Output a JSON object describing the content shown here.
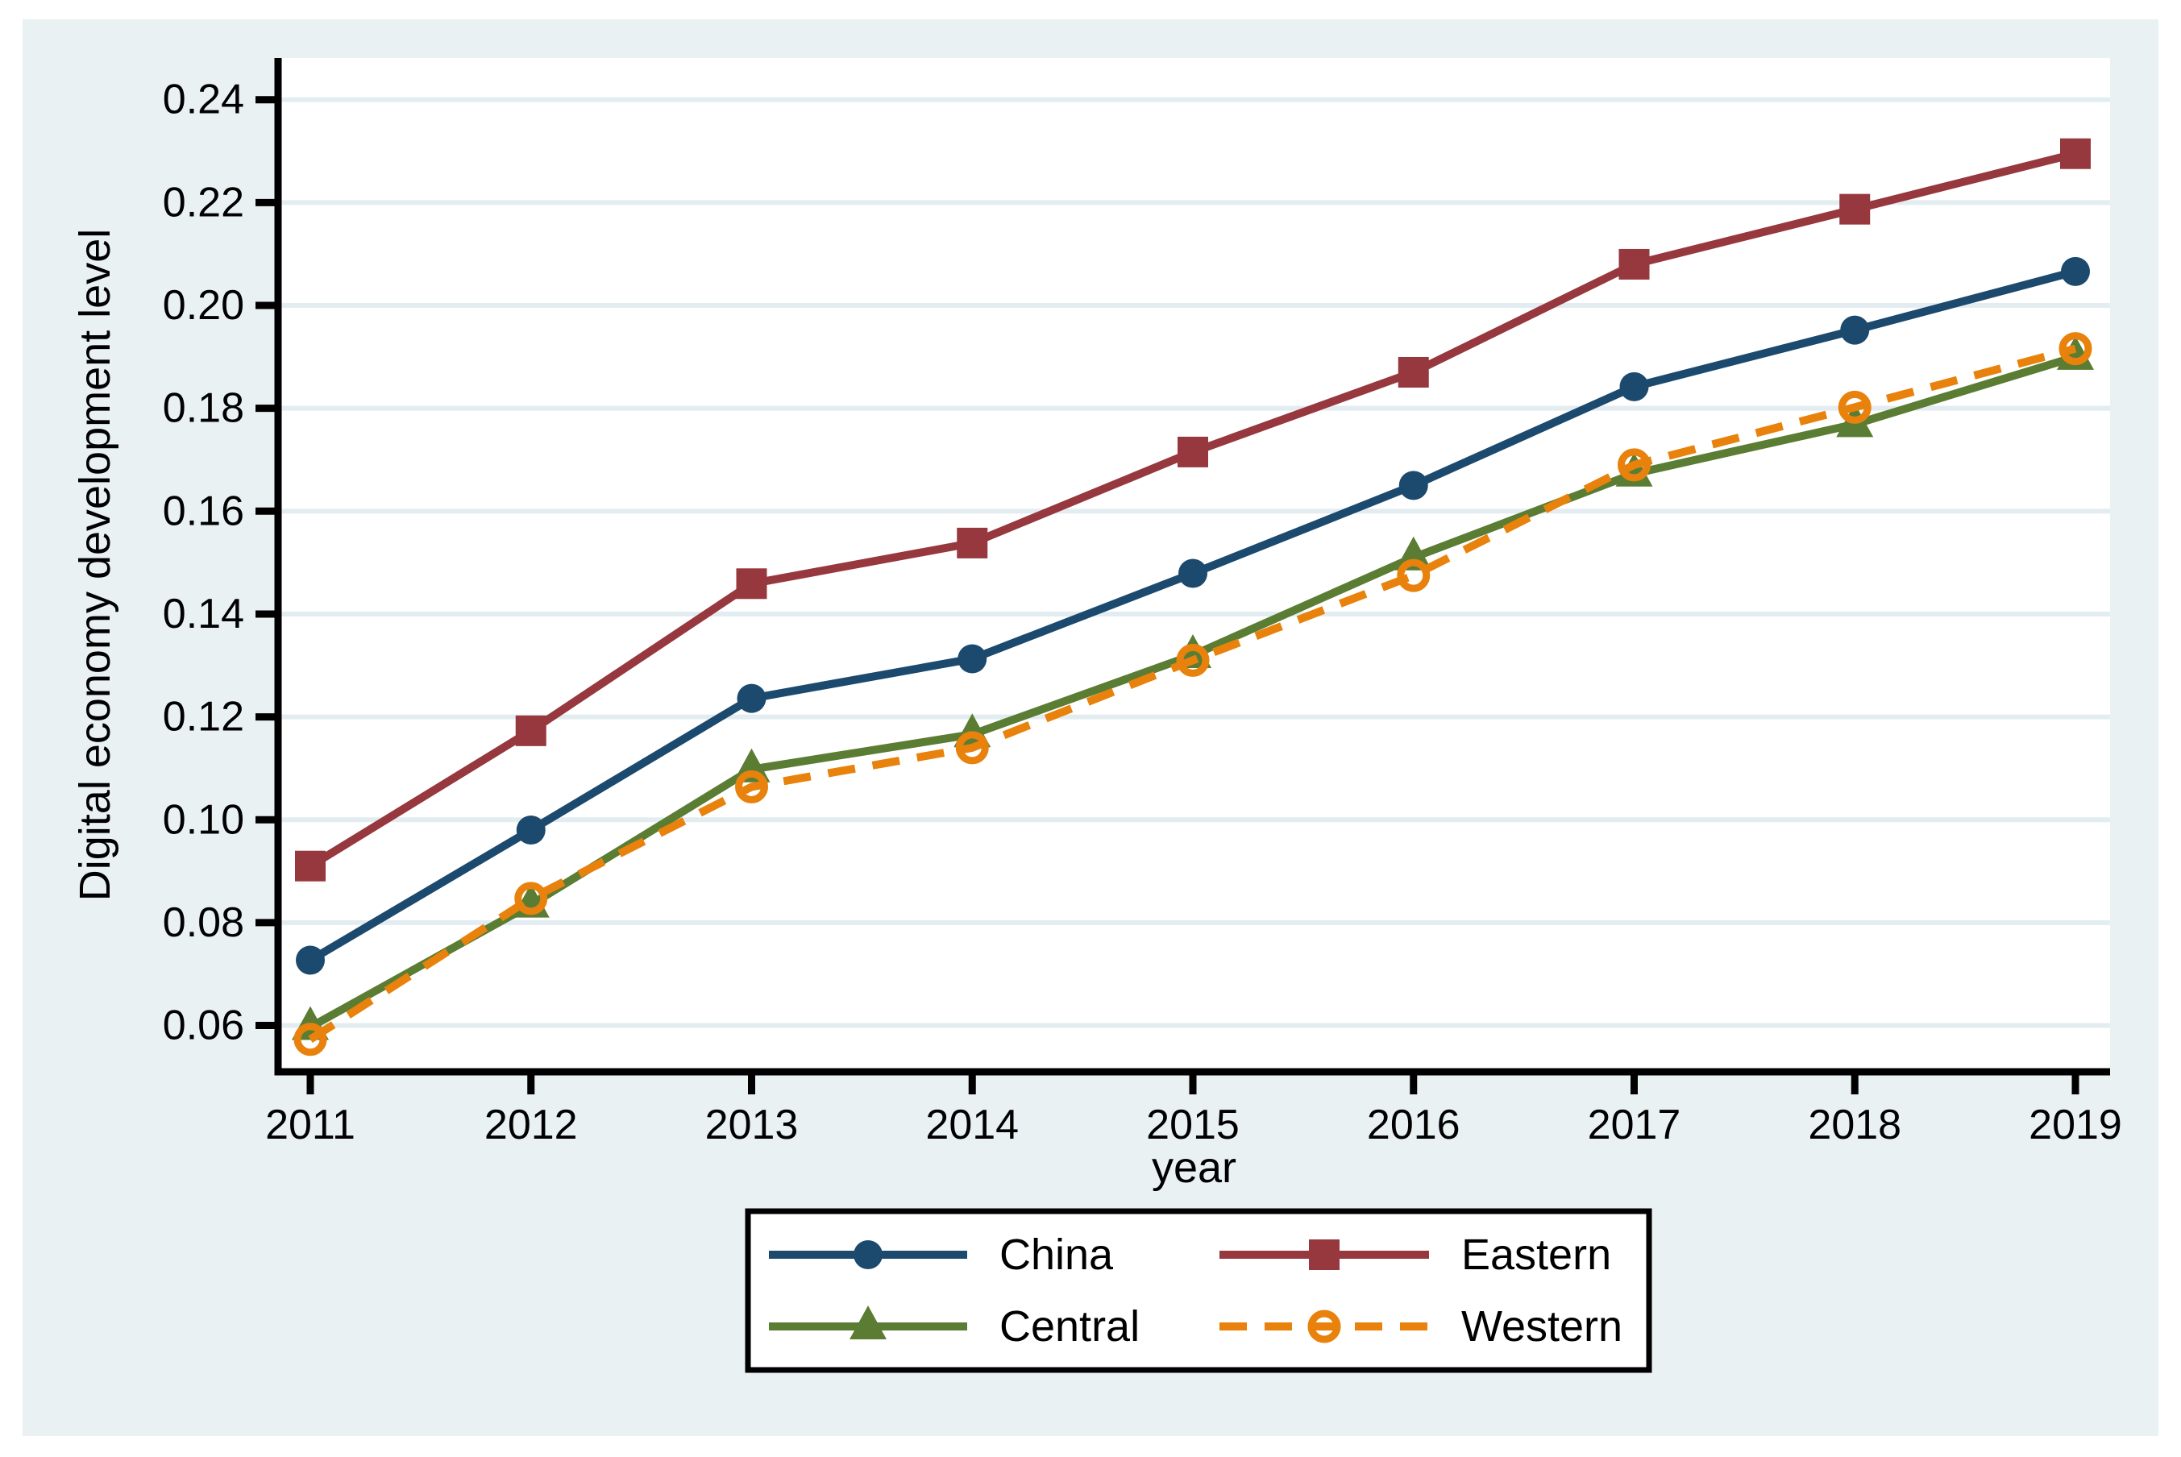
{
  "figure": {
    "page_background": "#ffffff",
    "canvas_background": "#e9f1f3",
    "plot_background": "#ffffff",
    "grid_color": "#e3edf1",
    "axis_color": "#000000",
    "text_color": "#000000"
  },
  "chart_data": {
    "type": "line",
    "title": "",
    "xlabel": "year",
    "ylabel": "Digital economy development level",
    "x": [
      2011,
      2012,
      2013,
      2014,
      2015,
      2016,
      2017,
      2018,
      2019
    ],
    "xtick_labels": [
      "2011",
      "2012",
      "2013",
      "2014",
      "2015",
      "2016",
      "2017",
      "2018",
      "2019"
    ],
    "yticks": [
      {
        "value": 0.06,
        "label": "0.06"
      },
      {
        "value": 0.08,
        "label": "0.08"
      },
      {
        "value": 0.1,
        "label": "0.10"
      },
      {
        "value": 0.12,
        "label": "0.12"
      },
      {
        "value": 0.14,
        "label": "0.14"
      },
      {
        "value": 0.16,
        "label": "0.16"
      },
      {
        "value": 0.18,
        "label": "0.18"
      },
      {
        "value": 0.2,
        "label": "0.20"
      },
      {
        "value": 0.22,
        "label": "0.22"
      },
      {
        "value": 0.24,
        "label": "0.24"
      }
    ],
    "ylim": [
      0.051,
      0.2481
    ],
    "grid": true,
    "legend_position": "bottom-center",
    "series": [
      {
        "name": "China",
        "color": "#1c4a6e",
        "marker": "circle",
        "line_style": "solid",
        "values": [
          0.0727,
          0.098,
          0.1236,
          0.1313,
          0.1479,
          0.165,
          0.1842,
          0.1952,
          0.2066
        ]
      },
      {
        "name": "Eastern",
        "color": "#96383e",
        "marker": "square",
        "line_style": "solid",
        "values": [
          0.091,
          0.1173,
          0.1459,
          0.1538,
          0.1715,
          0.187,
          0.208,
          0.2187,
          0.2295
        ]
      },
      {
        "name": "Central",
        "color": "#5a7d33",
        "marker": "triangle",
        "line_style": "solid",
        "values": [
          0.0597,
          0.0835,
          0.1098,
          0.1166,
          0.132,
          0.151,
          0.1673,
          0.1769,
          0.19
        ]
      },
      {
        "name": "Western",
        "color": "#e8820c",
        "marker": "circle-hollow",
        "line_style": "dashed",
        "values": [
          0.0573,
          0.0847,
          0.1064,
          0.114,
          0.131,
          0.1475,
          0.169,
          0.1802,
          0.1916
        ]
      }
    ],
    "legend_entries": [
      "China",
      "Eastern",
      "Central",
      "Western"
    ]
  }
}
